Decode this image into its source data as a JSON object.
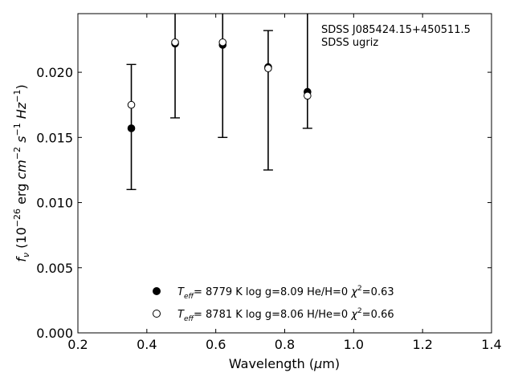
{
  "chart_data": {
    "type": "scatter",
    "annotation": [
      "SDSS J085424.15+450511.5",
      "SDSS ugriz"
    ],
    "xlabel": "Wavelength (μm)",
    "ylabel": "f_ν (10^-26 erg cm^-2 s^-1 Hz^-1)",
    "xlim": [
      0.2,
      1.4
    ],
    "ylim": [
      0.0,
      0.0245
    ],
    "xticks": [
      "0.2",
      "0.4",
      "0.6",
      "0.8",
      "1.0",
      "1.2",
      "1.4"
    ],
    "yticks": [
      "0.000",
      "0.005",
      "0.010",
      "0.015",
      "0.020"
    ],
    "grid": false,
    "legend_position": "bottom-center",
    "observed": {
      "x": [
        0.355,
        0.482,
        0.62,
        0.752,
        0.866
      ],
      "y": [
        0.0175,
        0.0223,
        0.0223,
        0.0203,
        0.0182
      ],
      "err_low": [
        0.011,
        0.0165,
        0.015,
        0.0125,
        0.0157
      ],
      "err_high": [
        0.0206,
        0.0245,
        0.0245,
        0.0232,
        0.0245
      ]
    },
    "series": [
      {
        "marker": "filled",
        "legend": {
          "teff": "8779 K",
          "logg": "log g=8.09",
          "comp": "He/H=0",
          "chi2": "=0.63"
        },
        "x": [
          0.355,
          0.482,
          0.62,
          0.752,
          0.866
        ],
        "y": [
          0.0157,
          0.0222,
          0.0221,
          0.0204,
          0.0185
        ]
      },
      {
        "marker": "open",
        "legend": {
          "teff": "8781 K",
          "logg": "log g=8.06",
          "comp": "H/He=0",
          "chi2": "=0.66"
        },
        "x": [
          0.355,
          0.482,
          0.62,
          0.752,
          0.866
        ],
        "y": [
          0.0175,
          0.0223,
          0.0223,
          0.0203,
          0.0182
        ]
      }
    ]
  }
}
